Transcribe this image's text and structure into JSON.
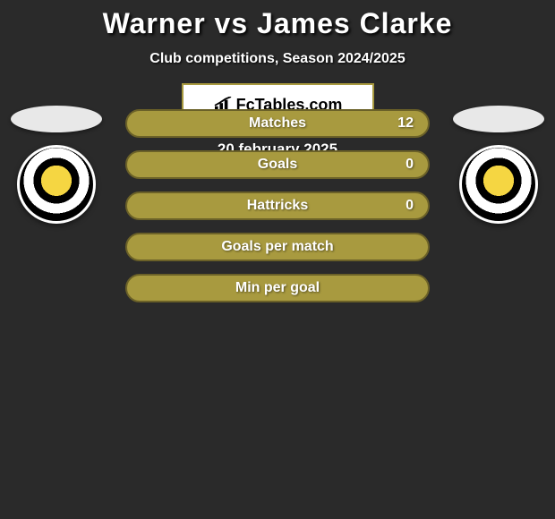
{
  "title": "Warner vs James Clarke",
  "subtitle": "Club competitions, Season 2024/2025",
  "stats": [
    {
      "label": "Matches",
      "value": "12",
      "show_value": true
    },
    {
      "label": "Goals",
      "value": "0",
      "show_value": true
    },
    {
      "label": "Hattricks",
      "value": "0",
      "show_value": true
    },
    {
      "label": "Goals per match",
      "value": "",
      "show_value": false
    },
    {
      "label": "Min per goal",
      "value": "",
      "show_value": false
    }
  ],
  "logo_text": "FcTables.com",
  "date": "20 february 2025",
  "colors": {
    "background": "#2a2a2a",
    "bar_fill": "#a89a3f",
    "bar_border": "#6b6128",
    "text_white": "#ffffff",
    "oval": "#e8e8e8"
  }
}
